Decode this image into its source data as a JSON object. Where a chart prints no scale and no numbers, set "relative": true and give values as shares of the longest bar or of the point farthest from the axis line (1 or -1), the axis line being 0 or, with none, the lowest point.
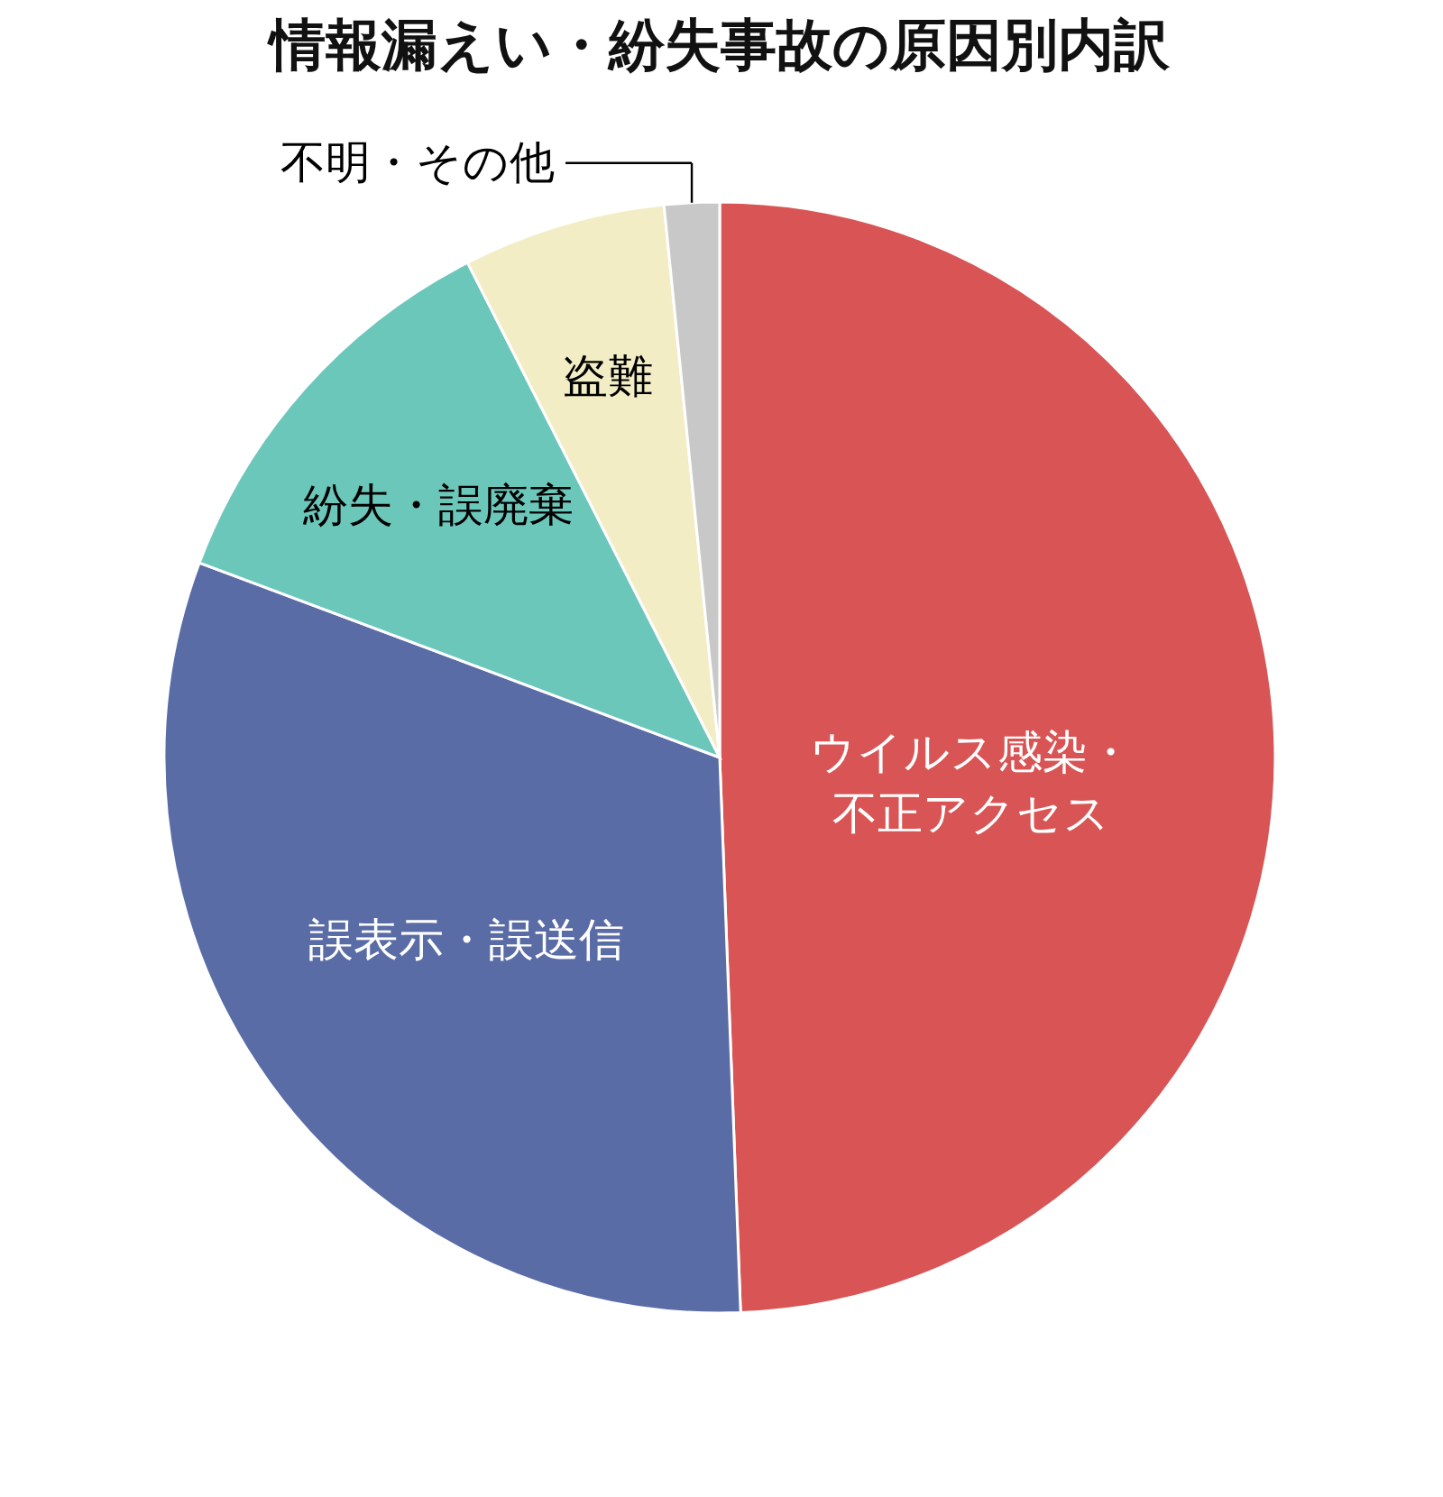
{
  "chart_data": {
    "type": "pie",
    "title": "情報漏えい・紛失事故の原因別内訳",
    "relative": true,
    "categories": [
      "ウイルス感染・不正アクセス",
      "誤表示・誤送信",
      "紛失・誤廃棄",
      "盗難",
      "不明・その他"
    ],
    "values": [
      49.4,
      31.3,
      11.8,
      5.9,
      1.6
    ],
    "colors": [
      "#d95555",
      "#5a6ca6",
      "#6cc7bb",
      "#f2edc4",
      "#c8c8c8"
    ]
  }
}
